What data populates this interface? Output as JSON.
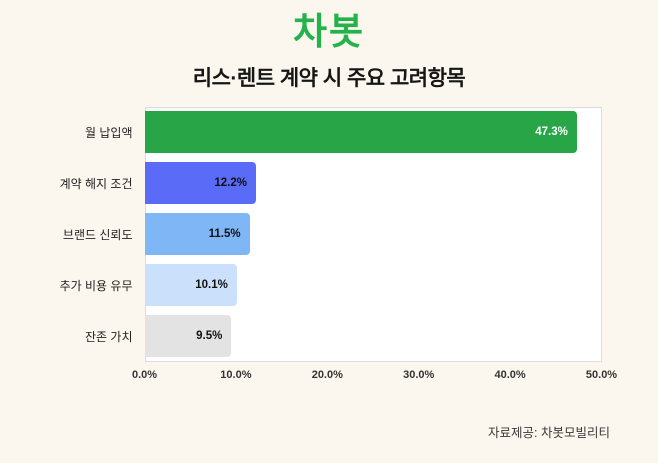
{
  "logo": {
    "text": "차봇",
    "color": "#23B24B"
  },
  "chart_data": {
    "type": "bar",
    "orientation": "horizontal",
    "title": "리스·렌트 계약 시 주요 고려항목",
    "categories": [
      "월 납입액",
      "계약 해지 조건",
      "브랜드 신뢰도",
      "추가 비용 유무",
      "잔존 가치"
    ],
    "values": [
      47.3,
      12.2,
      11.5,
      10.1,
      9.5
    ],
    "value_labels": [
      "47.3%",
      "12.2%",
      "11.5%",
      "10.1%",
      "9.5%"
    ],
    "bar_colors": [
      "#28A647",
      "#5A6BF8",
      "#7EB6F6",
      "#CBE0FB",
      "#E3E3E3"
    ],
    "value_label_colors": [
      "#ffffff",
      "#111111",
      "#111111",
      "#111111",
      "#111111"
    ],
    "xlim": [
      0,
      50
    ],
    "x_ticks": [
      "0.0%",
      "10.0%",
      "20.0%",
      "30.0%",
      "40.0%",
      "50.0%"
    ],
    "grid": false,
    "legend": false,
    "plot_background": "#ffffff",
    "page_background": "#FCF7EE"
  },
  "footer": {
    "source": "자료제공: 차봇모빌리티"
  }
}
